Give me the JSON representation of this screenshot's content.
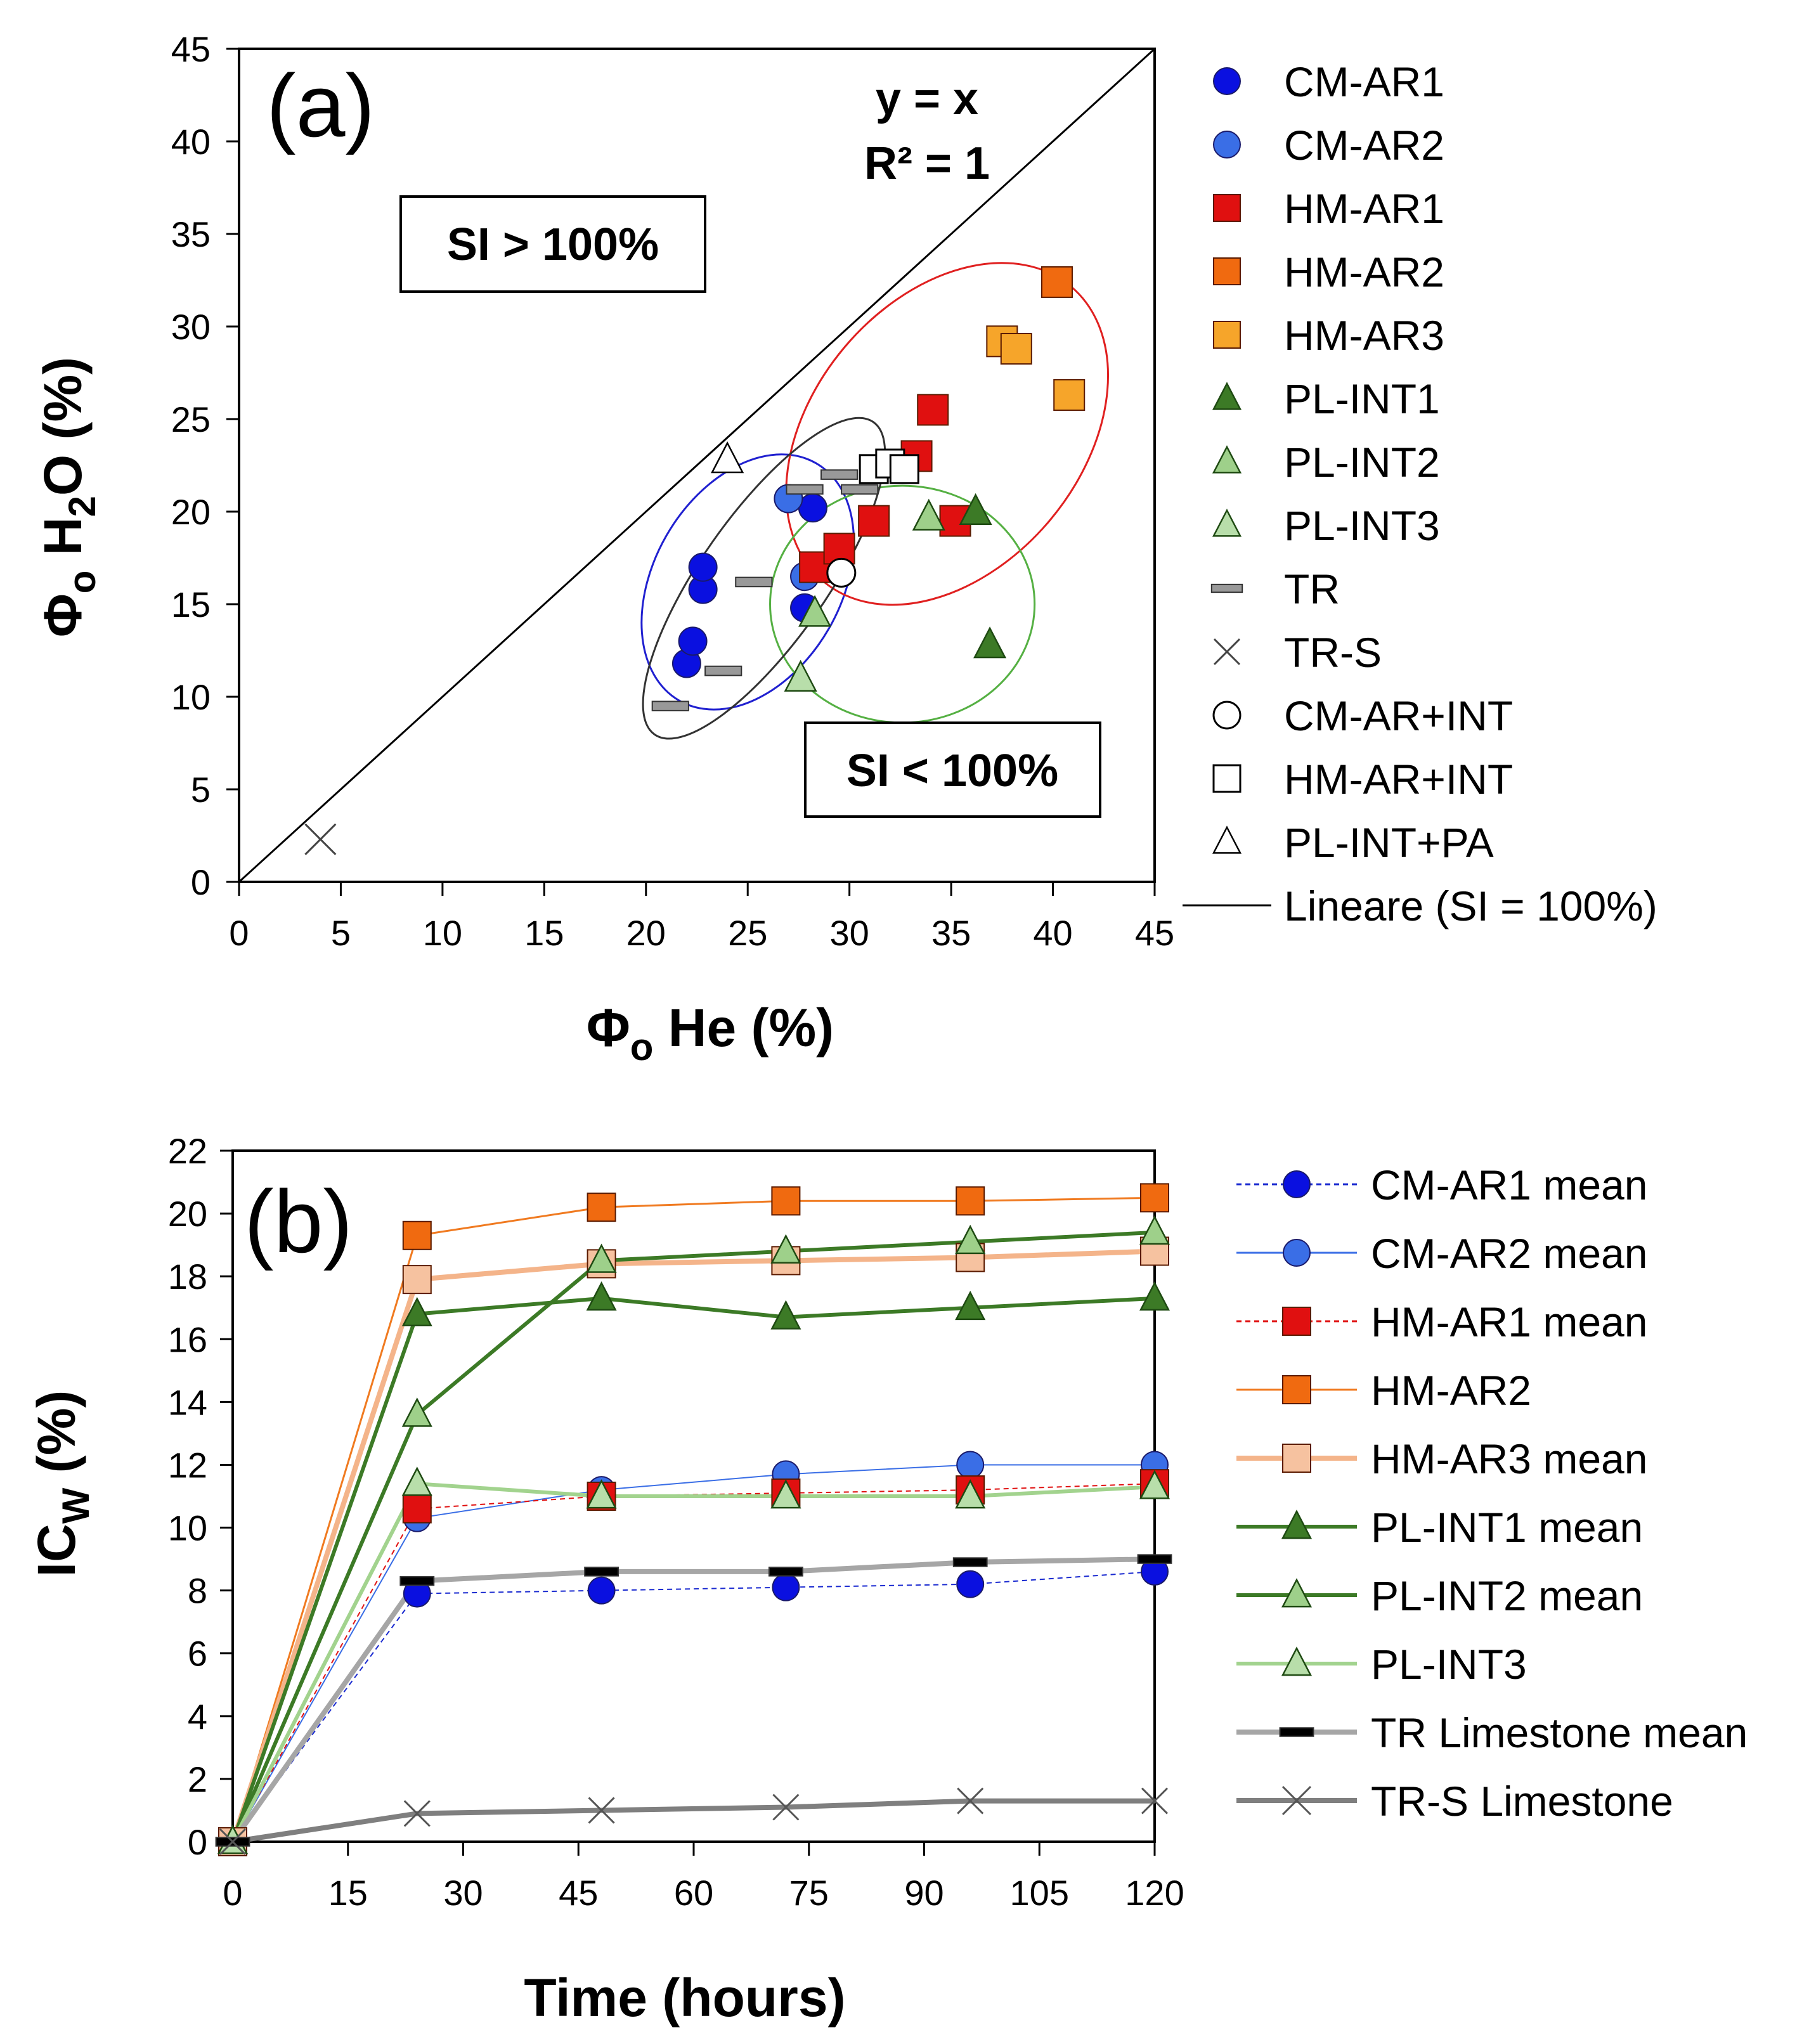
{
  "chart_data": [
    {
      "type": "scatter",
      "panel_label": "(a)",
      "xlabel": "Φo He (%)",
      "ylabel": "Φo H2O (%)",
      "xlim": [
        0,
        45
      ],
      "ylim": [
        0,
        45
      ],
      "xticks": [
        0,
        5,
        10,
        15,
        20,
        25,
        30,
        35,
        40,
        45
      ],
      "yticks": [
        0,
        5,
        10,
        15,
        20,
        25,
        30,
        35,
        40,
        45
      ],
      "equation": [
        "y = x",
        "R² = 1"
      ],
      "annotations": [
        "SI > 100%",
        "SI < 100%"
      ],
      "legend_position": "right",
      "series": [
        {
          "name": "CM-AR1",
          "marker": "circle",
          "color": "#0a10e0",
          "points": [
            [
              22.0,
              11.8
            ],
            [
              22.3,
              13.0
            ],
            [
              22.8,
              15.8
            ],
            [
              22.8,
              17.0
            ],
            [
              28.2,
              20.2
            ],
            [
              27.8,
              14.8
            ]
          ]
        },
        {
          "name": "CM-AR2",
          "marker": "circle",
          "color": "#3a6ee6",
          "points": [
            [
              27.0,
              20.7
            ],
            [
              27.8,
              16.5
            ]
          ]
        },
        {
          "name": "HM-AR1",
          "marker": "square",
          "color": "#e01010",
          "points": [
            [
              28.3,
              17.0
            ],
            [
              29.5,
              18.0
            ],
            [
              31.2,
              19.5
            ],
            [
              33.3,
              23.0
            ],
            [
              34.1,
              25.5
            ],
            [
              35.2,
              19.5
            ]
          ]
        },
        {
          "name": "HM-AR2",
          "marker": "square",
          "color": "#f06a10",
          "points": [
            [
              40.2,
              32.4
            ]
          ]
        },
        {
          "name": "HM-AR3",
          "marker": "square",
          "color": "#f6a52a",
          "points": [
            [
              37.5,
              29.2
            ],
            [
              38.2,
              28.8
            ],
            [
              40.8,
              26.3
            ]
          ]
        },
        {
          "name": "PL-INT1",
          "marker": "triangle",
          "color": "#3c7a26",
          "points": [
            [
              36.2,
              20.0
            ],
            [
              36.9,
              12.8
            ]
          ]
        },
        {
          "name": "PL-INT2",
          "marker": "triangle",
          "color": "#9ed08a",
          "points": [
            [
              28.3,
              14.5
            ],
            [
              33.9,
              19.7
            ]
          ]
        },
        {
          "name": "PL-INT3",
          "marker": "triangle",
          "color": "#b8deaa",
          "points": [
            [
              27.6,
              11.0
            ]
          ]
        },
        {
          "name": "TR",
          "marker": "dash",
          "color": "#999999",
          "points": [
            [
              21.2,
              9.5
            ],
            [
              23.8,
              11.4
            ],
            [
              25.3,
              16.2
            ],
            [
              27.8,
              21.2
            ],
            [
              29.5,
              22.0
            ],
            [
              30.5,
              21.2
            ]
          ]
        },
        {
          "name": "TR-S",
          "marker": "x",
          "color": "#444444",
          "points": [
            [
              4.0,
              2.3
            ]
          ]
        },
        {
          "name": "CM-AR+INT",
          "marker": "open-circle",
          "color": "#000000",
          "points": [
            [
              29.6,
              16.7
            ]
          ]
        },
        {
          "name": "HM-AR+INT",
          "marker": "open-square",
          "color": "#000000",
          "points": [
            [
              31.2,
              22.3
            ],
            [
              32.0,
              22.6
            ],
            [
              32.7,
              22.3
            ]
          ]
        },
        {
          "name": "PL-INT+PA",
          "marker": "open-triangle",
          "color": "#000000",
          "points": [
            [
              24.0,
              22.8
            ]
          ]
        },
        {
          "name": "Lineare (SI = 100%)",
          "marker": "line",
          "color": "#000000",
          "points": [
            [
              0,
              0
            ],
            [
              45,
              45
            ]
          ]
        }
      ],
      "ellipses": [
        {
          "color": "#2020d0",
          "center": [
            25.0,
            16.2
          ],
          "radii": [
            4.6,
            7.4
          ],
          "angle_deg": 30
        },
        {
          "color": "#e02020",
          "center": [
            34.8,
            24.2
          ],
          "radii": [
            6.6,
            10.4
          ],
          "angle_deg": 40
        },
        {
          "color": "#55b043",
          "center": [
            32.6,
            15.0
          ],
          "radii": [
            6.5,
            6.4
          ],
          "angle_deg": 0
        },
        {
          "color": "#333333",
          "center": [
            25.8,
            16.4
          ],
          "radii": [
            3.1,
            10.3
          ],
          "angle_deg": 35
        }
      ]
    },
    {
      "type": "line",
      "panel_label": "(b)",
      "xlabel": "Time (hours)",
      "ylabel": "ICW (%)",
      "xlim": [
        0,
        120
      ],
      "ylim": [
        0,
        22
      ],
      "xticks": [
        0,
        15,
        30,
        45,
        60,
        75,
        90,
        105,
        120
      ],
      "yticks": [
        0,
        2,
        4,
        6,
        8,
        10,
        12,
        14,
        16,
        18,
        20,
        22
      ],
      "x": [
        0,
        24,
        48,
        72,
        96,
        120
      ],
      "legend_position": "right",
      "series": [
        {
          "name": "CM-AR1 mean",
          "marker": "circle",
          "color": "#0a10e0",
          "line_color": "#1a2ad0",
          "dash": true,
          "width": 2,
          "values": [
            0,
            7.9,
            8.0,
            8.1,
            8.2,
            8.6
          ]
        },
        {
          "name": "CM-AR2 mean",
          "marker": "circle",
          "color": "#3a6ee6",
          "line_color": "#3a6ee6",
          "dash": false,
          "width": 2,
          "values": [
            0,
            10.3,
            11.2,
            11.7,
            12.0,
            12.0
          ]
        },
        {
          "name": "HM-AR1 mean",
          "marker": "square",
          "color": "#e01010",
          "line_color": "#e01010",
          "dash": true,
          "width": 2,
          "values": [
            0,
            10.6,
            11.0,
            11.1,
            11.2,
            11.4
          ]
        },
        {
          "name": "HM-AR2",
          "marker": "square",
          "color": "#f06a10",
          "line_color": "#f07a20",
          "dash": false,
          "width": 3,
          "values": [
            0,
            19.3,
            20.2,
            20.4,
            20.4,
            20.5
          ]
        },
        {
          "name": "HM-AR3 mean",
          "marker": "square",
          "color": "#f6c2a0",
          "line_color": "#f4b48a",
          "dash": false,
          "width": 8,
          "values": [
            0,
            17.9,
            18.4,
            18.5,
            18.6,
            18.8
          ]
        },
        {
          "name": "PL-INT1 mean",
          "marker": "triangle",
          "color": "#3c7a26",
          "line_color": "#3c7a26",
          "dash": false,
          "width": 6,
          "values": [
            0,
            16.8,
            17.3,
            16.7,
            17.0,
            17.3
          ]
        },
        {
          "name": "PL-INT2 mean",
          "marker": "triangle",
          "color": "#9ed08a",
          "line_color": "#3c7a26",
          "dash": false,
          "width": 6,
          "values": [
            0,
            13.6,
            18.5,
            18.8,
            19.1,
            19.4
          ]
        },
        {
          "name": "PL-INT3",
          "marker": "triangle",
          "color": "#b8deaa",
          "line_color": "#a2d38e",
          "dash": false,
          "width": 6,
          "values": [
            0,
            11.4,
            11.0,
            11.0,
            11.0,
            11.3
          ]
        },
        {
          "name": "TR Limestone mean",
          "marker": "dash",
          "color": "#000000",
          "line_color": "#a6a6a6",
          "dash": false,
          "width": 8,
          "values": [
            0,
            8.3,
            8.6,
            8.6,
            8.9,
            9.0
          ]
        },
        {
          "name": "TR-S Limestone",
          "marker": "x",
          "color": "#555555",
          "line_color": "#7f7f7f",
          "dash": false,
          "width": 8,
          "values": [
            0,
            0.9,
            1.0,
            1.1,
            1.3,
            1.3
          ]
        }
      ]
    }
  ]
}
